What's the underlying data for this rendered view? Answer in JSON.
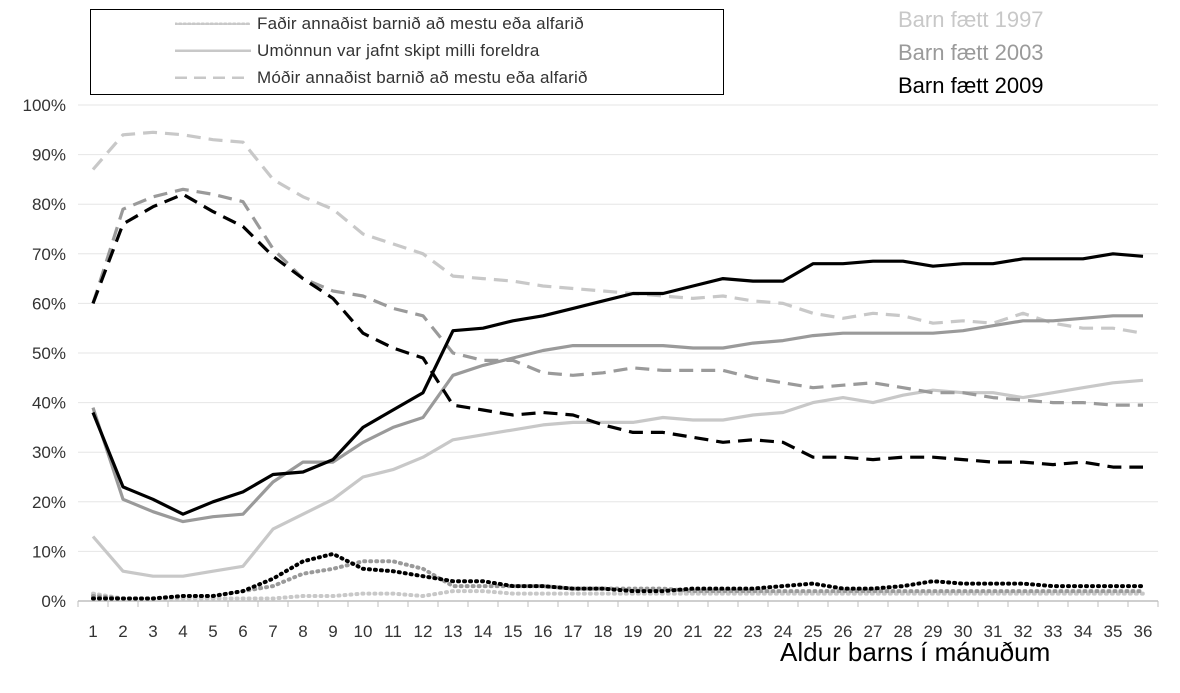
{
  "chart_data": {
    "type": "line",
    "xlabel": "Aldur barns í mánuðum",
    "ylabel": "",
    "x": [
      1,
      2,
      3,
      4,
      5,
      6,
      7,
      8,
      9,
      10,
      11,
      12,
      13,
      14,
      15,
      16,
      17,
      18,
      19,
      20,
      21,
      22,
      23,
      24,
      25,
      26,
      27,
      28,
      29,
      30,
      31,
      32,
      33,
      34,
      35,
      36
    ],
    "ylim": [
      0,
      100
    ],
    "yticks": [
      "0%",
      "10%",
      "20%",
      "30%",
      "40%",
      "50%",
      "60%",
      "70%",
      "80%",
      "90%",
      "100%"
    ],
    "grid": true,
    "legend_position": "top-left",
    "legend": [
      {
        "label": "Faðir annaðist barnið að mestu eða alfarið",
        "style": "dotted"
      },
      {
        "label": "Umönnun var jafnt skipt milli foreldra",
        "style": "solid"
      },
      {
        "label": "Móðir annaðist barnið að mestu eða alfarið",
        "style": "dashed"
      }
    ],
    "cohorts": [
      {
        "label": "Barn fætt 1997",
        "color": "#c8c8c8"
      },
      {
        "label": "Barn fætt 2003",
        "color": "#9a9a9a"
      },
      {
        "label": "Barn fætt 2009",
        "color": "#000000"
      }
    ],
    "series": [
      {
        "cohort": 0,
        "style": "dotted",
        "values": [
          1.5,
          0.5,
          0.5,
          0.5,
          0.5,
          0.5,
          0.5,
          1,
          1,
          1.5,
          1.5,
          1,
          2,
          2,
          1.5,
          1.5,
          1.5,
          1.5,
          1.5,
          1.5,
          1.5,
          1.5,
          1.5,
          1.5,
          1.5,
          1.5,
          1.5,
          1.5,
          1.5,
          1.5,
          1.5,
          1.5,
          1.5,
          1.5,
          1.5,
          1.5
        ]
      },
      {
        "cohort": 0,
        "style": "solid",
        "values": [
          13,
          6,
          5,
          5,
          6,
          7,
          14.5,
          17.5,
          20.5,
          25,
          26.5,
          29,
          32.5,
          33.5,
          34.5,
          35.5,
          36,
          36,
          36,
          37,
          36.5,
          36.5,
          37.5,
          38,
          40,
          41,
          40,
          41.5,
          42.5,
          42,
          42,
          41,
          42,
          43,
          44,
          44.5
        ]
      },
      {
        "cohort": 0,
        "style": "dashed",
        "values": [
          87,
          94,
          94.5,
          94,
          93,
          92.5,
          85,
          81.5,
          79,
          74,
          72,
          70,
          65.5,
          65,
          64.5,
          63.5,
          63,
          62.5,
          62,
          61.5,
          61,
          61.5,
          60.5,
          60,
          58,
          57,
          58,
          57.5,
          56,
          56.5,
          56,
          58,
          56,
          55,
          55,
          54
        ]
      },
      {
        "cohort": 1,
        "style": "dotted",
        "values": [
          1,
          0.5,
          0.5,
          1,
          1,
          2,
          3,
          5.5,
          6.5,
          8,
          8,
          6.5,
          3,
          3,
          3,
          3,
          2.5,
          2.5,
          2.5,
          2.5,
          2,
          2,
          2,
          2,
          2,
          2,
          2,
          2,
          2,
          2,
          2,
          2,
          2,
          2,
          2,
          2
        ]
      },
      {
        "cohort": 1,
        "style": "solid",
        "values": [
          39,
          20.5,
          18,
          16,
          17,
          17.5,
          24,
          28,
          28,
          32,
          35,
          37,
          45.5,
          47.5,
          49,
          50.5,
          51.5,
          51.5,
          51.5,
          51.5,
          51,
          51,
          52,
          52.5,
          53.5,
          54,
          54,
          54,
          54,
          54.5,
          55.5,
          56.5,
          56.5,
          57,
          57.5,
          57.5
        ]
      },
      {
        "cohort": 1,
        "style": "dashed",
        "values": [
          60,
          79,
          81.5,
          83,
          82,
          80.5,
          71,
          65,
          62.5,
          61.5,
          59,
          57.5,
          50,
          48.5,
          48.5,
          46,
          45.5,
          46,
          47,
          46.5,
          46.5,
          46.5,
          45,
          44,
          43,
          43.5,
          44,
          43,
          42,
          42,
          41,
          40.5,
          40,
          40,
          39.5,
          39.5
        ]
      },
      {
        "cohort": 2,
        "style": "dotted",
        "values": [
          0.5,
          0.5,
          0.5,
          1,
          1,
          2,
          4.5,
          8,
          9.5,
          6.5,
          6,
          5,
          4,
          4,
          3,
          3,
          2.5,
          2.5,
          2,
          2,
          2.5,
          2.5,
          2.5,
          3,
          3.5,
          2.5,
          2.5,
          3,
          4,
          3.5,
          3.5,
          3.5,
          3,
          3,
          3,
          3
        ]
      },
      {
        "cohort": 2,
        "style": "solid",
        "values": [
          38,
          23,
          20.5,
          17.5,
          20,
          22,
          25.5,
          26,
          28.5,
          35,
          38.5,
          42,
          54.5,
          55,
          56.5,
          57.5,
          59,
          60.5,
          62,
          62,
          63.5,
          65,
          64.5,
          64.5,
          68,
          68,
          68.5,
          68.5,
          67.5,
          68,
          68,
          69,
          69,
          69,
          70,
          69.5
        ]
      },
      {
        "cohort": 2,
        "style": "dashed",
        "values": [
          60,
          76,
          79.5,
          82,
          78.5,
          75.5,
          69.5,
          65,
          61,
          54,
          51,
          49,
          39.5,
          38.5,
          37.5,
          38,
          37.5,
          35.5,
          34,
          34,
          33,
          32,
          32.5,
          32,
          29,
          29,
          28.5,
          29,
          29,
          28.5,
          28,
          28,
          27.5,
          28,
          27,
          27
        ]
      }
    ]
  }
}
